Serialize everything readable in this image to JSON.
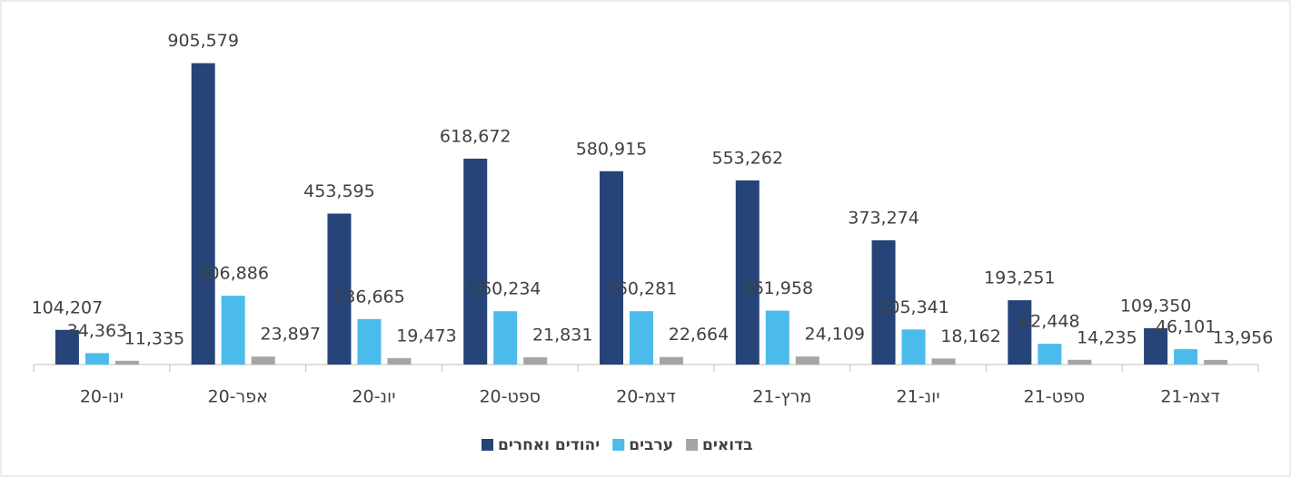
{
  "chart_data": {
    "type": "bar",
    "categories": [
      "ינו-20",
      "אפר-20",
      "יונ-20",
      "ספט-20",
      "דצמ-20",
      "מרץ-21",
      "יונ-21",
      "ספט-21",
      "דצמ-21"
    ],
    "series": [
      {
        "name": "יהודים ואחרים",
        "color": "#264478",
        "values": [
          104207,
          905579,
          453595,
          618672,
          580915,
          553262,
          373274,
          193251,
          109350
        ],
        "value_labels": [
          "104,207",
          "905,579",
          "453,595",
          "618,672",
          "580,915",
          "553,262",
          "373,274",
          "193,251",
          "109,350"
        ]
      },
      {
        "name": "ערבים",
        "color": "#4bbbeb",
        "values": [
          34363,
          206886,
          136665,
          160234,
          160281,
          161958,
          105341,
          62448,
          46101
        ],
        "value_labels": [
          "34,363",
          "206,886",
          "136,665",
          "160,234",
          "160,281",
          "161,958",
          "105,341",
          "62,448",
          "46,101"
        ]
      },
      {
        "name": "בדואים",
        "color": "#a5a5a5",
        "values": [
          11335,
          23897,
          19473,
          21831,
          22664,
          24109,
          18162,
          14235,
          13956
        ],
        "value_labels": [
          "11,335",
          "23,897",
          "19,473",
          "21,831",
          "22,664",
          "24,109",
          "18,162",
          "14,235",
          "13,956"
        ]
      }
    ],
    "ylim": [
      0,
      1000000
    ],
    "legend": "bottom"
  }
}
